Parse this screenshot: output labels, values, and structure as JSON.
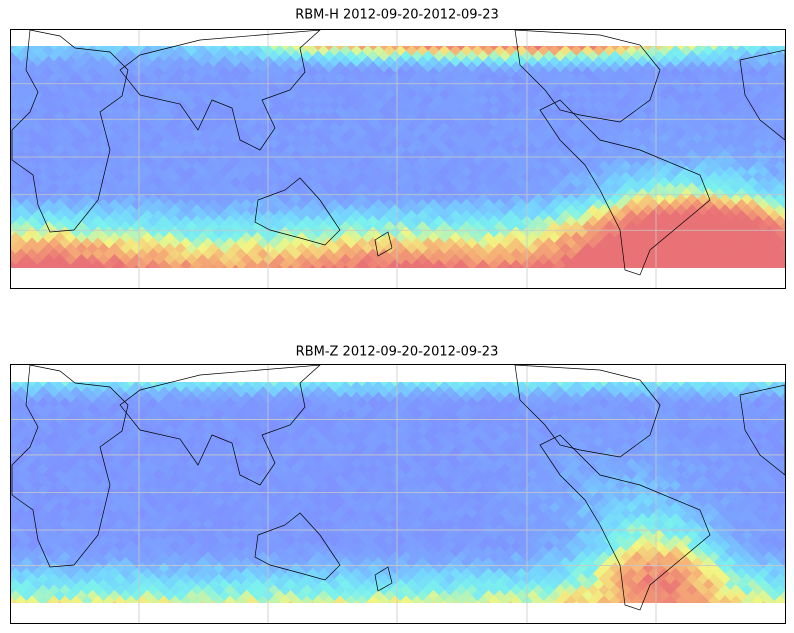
{
  "panels": [
    {
      "title": "RBM-H 2012-09-20-2012-09-23"
    },
    {
      "title": "RBM-Z 2012-09-20-2012-09-23"
    }
  ]
}
